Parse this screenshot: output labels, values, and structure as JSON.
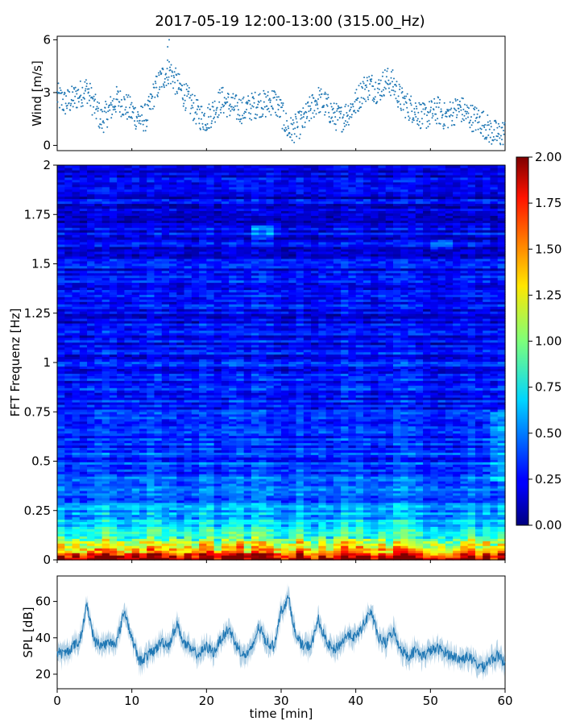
{
  "chart_data": [
    {
      "type": "scatter",
      "title": "2017-05-19 12:00-13:00 (315.00_Hz)",
      "ylabel": "Wind [m/s]",
      "xlim": [
        0,
        60
      ],
      "ylim": [
        -0.3,
        6.2
      ],
      "yticks": [
        0,
        3,
        6
      ],
      "ytick_labels": [
        "0",
        "3",
        "6"
      ],
      "color": "#1f77b4",
      "series": [
        {
          "name": "wind",
          "x": [
            0,
            1,
            2,
            3,
            4,
            5,
            6,
            7,
            8,
            9,
            10,
            11,
            12,
            13,
            14,
            15,
            16,
            17,
            18,
            19,
            20,
            21,
            22,
            23,
            24,
            25,
            26,
            27,
            28,
            29,
            30,
            31,
            32,
            33,
            34,
            35,
            36,
            37,
            38,
            39,
            40,
            41,
            42,
            43,
            44,
            45,
            46,
            47,
            48,
            49,
            50,
            51,
            52,
            53,
            54,
            55,
            56,
            57,
            58,
            59,
            60
          ],
          "values": [
            2.8,
            2.4,
            2.6,
            2.9,
            3.2,
            2.2,
            1.4,
            2.0,
            2.6,
            2.3,
            1.9,
            1.5,
            1.6,
            3.0,
            3.8,
            4.3,
            3.5,
            2.9,
            2.3,
            1.7,
            1.5,
            2.0,
            2.6,
            2.3,
            2.1,
            2.0,
            2.2,
            2.4,
            2.3,
            2.6,
            1.9,
            0.8,
            1.0,
            1.4,
            2.1,
            2.6,
            2.3,
            1.7,
            1.5,
            1.9,
            2.4,
            3.2,
            3.4,
            3.1,
            3.7,
            3.5,
            2.6,
            2.2,
            2.0,
            1.6,
            1.8,
            2.0,
            1.6,
            1.9,
            2.1,
            1.7,
            1.5,
            1.3,
            0.8,
            0.6,
            0.7
          ]
        }
      ]
    },
    {
      "type": "heatmap",
      "ylabel": "FFT Frequenz [Hz]",
      "xlim": [
        0,
        60
      ],
      "ylim": [
        0,
        2
      ],
      "yticks": [
        0,
        0.25,
        0.5,
        0.75,
        1,
        1.25,
        1.5,
        1.75,
        2
      ],
      "ytick_labels": [
        "0",
        "0.25",
        "0.5",
        "0.75",
        "1",
        "1.25",
        "1.5",
        "1.75",
        "2"
      ],
      "colormap": "jet",
      "color_range": [
        0,
        2
      ],
      "colorbar_ticks": [
        0,
        0.25,
        0.5,
        0.75,
        1,
        1.25,
        1.5,
        1.75,
        2
      ],
      "colorbar_labels": [
        "0.00",
        "0.25",
        "0.50",
        "0.75",
        "1.00",
        "1.25",
        "1.50",
        "1.75",
        "2.00"
      ],
      "description_profile": {
        "frequency_bins_hz": [
          0.0,
          0.02,
          0.04,
          0.06,
          0.1,
          0.15,
          0.2,
          0.25,
          0.3,
          0.4,
          0.5,
          0.75,
          1.0,
          1.25,
          1.5,
          1.75,
          2.0
        ],
        "typical_values": [
          1.95,
          1.75,
          1.45,
          1.2,
          0.95,
          0.8,
          0.65,
          0.55,
          0.45,
          0.4,
          0.35,
          0.3,
          0.27,
          0.24,
          0.22,
          0.2,
          0.18
        ]
      }
    },
    {
      "type": "line",
      "ylabel": "SPL [dB]",
      "xlabel": "time [min]",
      "xlim": [
        0,
        60
      ],
      "ylim": [
        12,
        74
      ],
      "xticks": [
        0,
        10,
        20,
        30,
        40,
        50,
        60
      ],
      "xtick_labels": [
        "0",
        "10",
        "20",
        "30",
        "40",
        "50",
        "60"
      ],
      "yticks": [
        20,
        40,
        60
      ],
      "ytick_labels": [
        "20",
        "40",
        "60"
      ],
      "color": "#1f77b4",
      "series": [
        {
          "name": "SPL",
          "x": [
            0,
            1,
            2,
            3,
            4,
            5,
            6,
            7,
            8,
            9,
            10,
            11,
            12,
            13,
            14,
            15,
            16,
            17,
            18,
            19,
            20,
            21,
            22,
            23,
            24,
            25,
            26,
            27,
            28,
            29,
            30,
            31,
            32,
            33,
            34,
            35,
            36,
            37,
            38,
            39,
            40,
            41,
            42,
            43,
            44,
            45,
            46,
            47,
            48,
            49,
            50,
            51,
            52,
            53,
            54,
            55,
            56,
            57,
            58,
            59,
            60
          ],
          "values": [
            32,
            31,
            35,
            38,
            58,
            38,
            36,
            37,
            38,
            55,
            40,
            27,
            30,
            33,
            38,
            36,
            48,
            37,
            33,
            31,
            35,
            32,
            40,
            45,
            36,
            30,
            33,
            46,
            38,
            35,
            55,
            62,
            40,
            35,
            36,
            50,
            38,
            33,
            37,
            42,
            40,
            47,
            55,
            40,
            37,
            44,
            34,
            30,
            33,
            30,
            33,
            34,
            32,
            30,
            28,
            30,
            26,
            24,
            28,
            30,
            26
          ]
        }
      ]
    }
  ]
}
